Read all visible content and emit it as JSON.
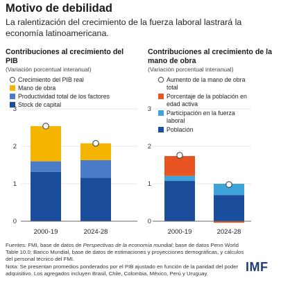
{
  "title": "Motivo de debilidad",
  "subtitle": "La ralentización del crecimiento de la fuerza laboral lastrará la economía latinoamericana.",
  "footer": {
    "sources_prefix": "Fuentes: FMI, base de datos de ",
    "sources_italic": "Perspectivas de la economía mundial",
    "sources_suffix": "; base de datos Penn World Table 10.0; Banco Mundial, base de datos de estimaciones y proyecciones demográficas, y cálculos del personal técnico del FMI.",
    "note": "Nota: Se presentan promedios ponderados por el PIB ajustado en función de la paridad del poder adquisitivo. Los agregados incluyen Brasil, Chile, Colombia, México, Perú y Uruguay."
  },
  "logo": "IMF",
  "colors": {
    "yellow": "#F5B400",
    "blue_mid": "#4A7CC7",
    "navy": "#1A4E9C",
    "orange": "#E8541F",
    "light_blue": "#3FA3D9",
    "marker_fill": "#ffffff",
    "grid": "#dddddd"
  },
  "chart_data": [
    {
      "type": "bar",
      "stacked": true,
      "title": "Contribuciones al crecimiento del PIB",
      "subtitle": "(Variación porcentual interanual)",
      "categories": [
        "2000-19",
        "2024-28"
      ],
      "ylim": [
        0,
        3
      ],
      "yticks": [
        "0",
        "1",
        "2",
        "3"
      ],
      "legend": [
        {
          "label": "Crecimiento del PIB real",
          "kind": "circle"
        },
        {
          "label": "Mano de obra",
          "kind": "square",
          "color": "#F5B400"
        },
        {
          "label": "Productividad total de los factores",
          "kind": "square",
          "color": "#4A7CC7"
        },
        {
          "label": "Stock de capital",
          "kind": "square",
          "color": "#1A4E9C"
        }
      ],
      "series": [
        {
          "name": "Stock de capital",
          "color": "#1A4E9C",
          "values": [
            1.32,
            1.16
          ]
        },
        {
          "name": "Productividad total de los factores",
          "color": "#4A7CC7",
          "values": [
            0.28,
            0.47
          ]
        },
        {
          "name": "Mano de obra",
          "color": "#F5B400",
          "values": [
            0.94,
            0.45
          ]
        }
      ],
      "markers": {
        "name": "Crecimiento del PIB real",
        "values": [
          2.54,
          2.08
        ]
      }
    },
    {
      "type": "bar",
      "stacked": true,
      "title": "Contribuciones al crecimiento de la mano de obra",
      "subtitle": "(Variación porcentual interanual)",
      "categories": [
        "2000-19",
        "2024-28"
      ],
      "ylim": [
        0,
        3
      ],
      "yticks": [
        "0",
        "1",
        "2",
        "3"
      ],
      "legend": [
        {
          "label": "Aumento de la mano de obra total",
          "kind": "circle"
        },
        {
          "label": "Porcentaje de la población en edad activa",
          "kind": "square",
          "color": "#E8541F"
        },
        {
          "label": "Participación en la fuerza laboral",
          "kind": "square",
          "color": "#3FA3D9"
        },
        {
          "label": "Población",
          "kind": "square",
          "color": "#1A4E9C"
        }
      ],
      "series": [
        {
          "name": "Población",
          "color": "#1A4E9C",
          "values": [
            1.08,
            0.7
          ]
        },
        {
          "name": "Participación en la fuerza laboral",
          "color": "#3FA3D9",
          "values": [
            0.13,
            0.3
          ]
        },
        {
          "name": "Porcentaje de la población en edad activa",
          "color": "#E8541F",
          "values": [
            0.53,
            -0.04
          ]
        }
      ],
      "markers": {
        "name": "Aumento de la mano de obra total",
        "values": [
          1.76,
          0.98
        ]
      }
    }
  ]
}
